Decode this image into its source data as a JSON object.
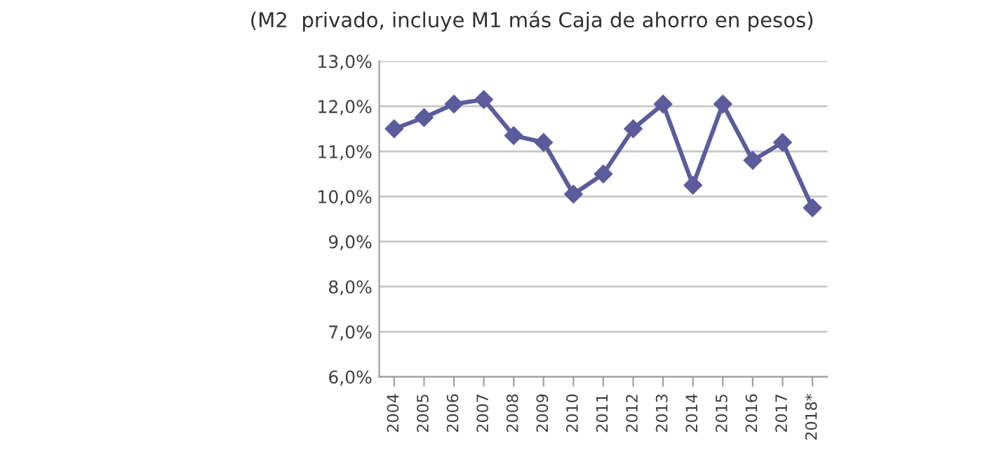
{
  "chart_data": {
    "type": "line",
    "subtitle": "(M2  privado, incluye M1 más Caja de ahorro en pesos)",
    "categories": [
      "2004",
      "2005",
      "2006",
      "2007",
      "2008",
      "2009",
      "2010",
      "2011",
      "2012",
      "2013",
      "2014",
      "2015",
      "2016",
      "2017",
      "2018*"
    ],
    "series": [
      {
        "color": "#5c5c9c",
        "values": [
          11.5,
          11.75,
          12.05,
          12.15,
          11.35,
          11.2,
          10.05,
          10.5,
          11.5,
          12.05,
          10.25,
          12.05,
          10.8,
          11.2,
          9.75
        ]
      }
    ],
    "ylim": [
      6,
      13
    ],
    "yticks": [
      {
        "value": 6,
        "label": "6,0%"
      },
      {
        "value": 7,
        "label": "7,0%"
      },
      {
        "value": 8,
        "label": "8,0%"
      },
      {
        "value": 9,
        "label": "9,0%"
      },
      {
        "value": 10,
        "label": "10,0%"
      },
      {
        "value": 11,
        "label": "11,0%"
      },
      {
        "value": 12,
        "label": "12,0%"
      },
      {
        "value": 13,
        "label": "13,0%"
      }
    ],
    "grid": "y",
    "marker": "diamond",
    "line_style": "solid",
    "legend": false
  }
}
